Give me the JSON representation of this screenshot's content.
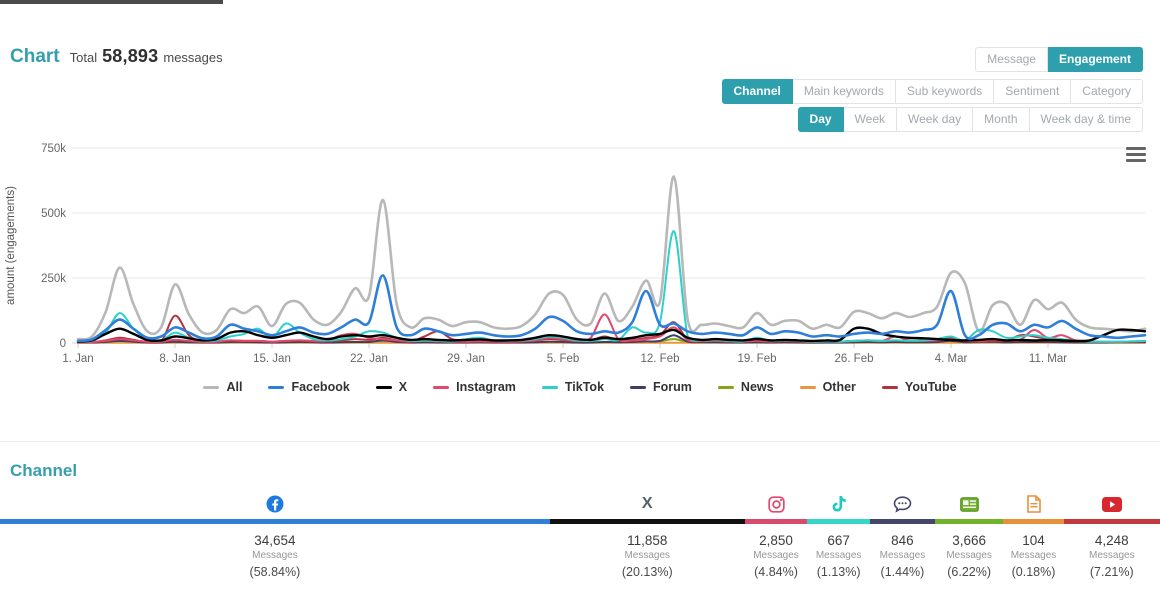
{
  "header": {
    "heading": "Chart",
    "total_label": "Total",
    "total_value": "58,893",
    "total_suffix": "messages"
  },
  "toolbars": {
    "view_toggle": [
      {
        "label": "Message",
        "active": false
      },
      {
        "label": "Engagement",
        "active": true
      }
    ],
    "dimension_tabs": [
      {
        "label": "Channel",
        "active": true
      },
      {
        "label": "Main keywords",
        "active": false
      },
      {
        "label": "Sub keywords",
        "active": false
      },
      {
        "label": "Sentiment",
        "active": false
      },
      {
        "label": "Category",
        "active": false
      }
    ],
    "granularity_tabs": [
      {
        "label": "Day",
        "active": true
      },
      {
        "label": "Week",
        "active": false
      },
      {
        "label": "Week day",
        "active": false
      },
      {
        "label": "Month",
        "active": false
      },
      {
        "label": "Week day & time",
        "active": false
      }
    ]
  },
  "colors": {
    "accent_teal": "#2e9fad",
    "grid": "#e8e8e8",
    "axis": "#cccccc",
    "tick_text": "#666666"
  },
  "chart_data": {
    "type": "line",
    "title": "",
    "ylabel": "amount (engagements)",
    "xlabel": "",
    "y_unit": "thousands",
    "ylim_thousands": [
      0,
      750
    ],
    "ytick_labels": [
      "0",
      "250k",
      "500k",
      "750k"
    ],
    "ytick_values_thousands": [
      0,
      250,
      500,
      750
    ],
    "x_start": "1. Jan",
    "x_end": "19. Mar",
    "points_per_series": 78,
    "xtick_labels": [
      "1. Jan",
      "8. Jan",
      "15. Jan",
      "22. Jan",
      "29. Jan",
      "5. Feb",
      "12. Feb",
      "19. Feb",
      "26. Feb",
      "4. Mar",
      "11. Mar"
    ],
    "xtick_day_indices": [
      0,
      7,
      14,
      21,
      28,
      35,
      42,
      49,
      56,
      63,
      70
    ],
    "legend_position": "bottom",
    "grid": true,
    "series": [
      {
        "name": "All",
        "color": "#b8b8b8",
        "width": 2.6,
        "values_thousands": [
          15,
          25,
          120,
          290,
          150,
          45,
          60,
          225,
          110,
          40,
          50,
          130,
          115,
          140,
          65,
          150,
          155,
          90,
          70,
          120,
          210,
          180,
          550,
          150,
          60,
          95,
          90,
          65,
          80,
          80,
          60,
          55,
          65,
          110,
          190,
          185,
          90,
          75,
          190,
          85,
          140,
          240,
          160,
          640,
          90,
          70,
          75,
          65,
          60,
          115,
          70,
          85,
          85,
          55,
          70,
          60,
          120,
          115,
          95,
          115,
          100,
          115,
          140,
          270,
          230,
          45,
          145,
          150,
          70,
          165,
          130,
          155,
          90,
          60,
          55,
          50,
          45,
          55
        ]
      },
      {
        "name": "Facebook",
        "color": "#2f7fd9",
        "width": 2.6,
        "values_thousands": [
          8,
          14,
          50,
          90,
          55,
          20,
          25,
          60,
          40,
          18,
          25,
          70,
          55,
          45,
          30,
          45,
          60,
          40,
          35,
          60,
          90,
          80,
          260,
          60,
          30,
          55,
          45,
          30,
          35,
          40,
          30,
          25,
          30,
          55,
          100,
          85,
          45,
          35,
          45,
          40,
          80,
          200,
          70,
          75,
          45,
          35,
          40,
          35,
          30,
          60,
          35,
          45,
          40,
          25,
          30,
          25,
          35,
          40,
          35,
          45,
          40,
          50,
          70,
          200,
          30,
          30,
          70,
          75,
          45,
          70,
          60,
          85,
          55,
          30,
          25,
          20,
          25,
          30
        ]
      },
      {
        "name": "X",
        "color": "#000000",
        "width": 2.4,
        "values_thousands": [
          5,
          10,
          35,
          55,
          35,
          12,
          10,
          25,
          18,
          10,
          15,
          40,
          45,
          30,
          20,
          30,
          40,
          25,
          15,
          25,
          30,
          25,
          30,
          20,
          12,
          15,
          12,
          10,
          12,
          14,
          10,
          10,
          12,
          20,
          30,
          25,
          15,
          12,
          20,
          15,
          20,
          30,
          35,
          50,
          20,
          12,
          15,
          12,
          10,
          15,
          10,
          12,
          10,
          8,
          10,
          12,
          55,
          55,
          35,
          25,
          20,
          18,
          15,
          12,
          10,
          12,
          15,
          10,
          12,
          10,
          12,
          10,
          8,
          10,
          30,
          50,
          50,
          45
        ]
      },
      {
        "name": "Instagram",
        "color": "#e0486e",
        "width": 2,
        "values_thousands": [
          3,
          4,
          8,
          15,
          10,
          5,
          5,
          12,
          8,
          4,
          5,
          10,
          8,
          8,
          5,
          8,
          10,
          8,
          10,
          30,
          35,
          20,
          15,
          10,
          6,
          8,
          6,
          5,
          5,
          6,
          5,
          5,
          6,
          10,
          20,
          15,
          8,
          20,
          110,
          15,
          10,
          15,
          25,
          60,
          12,
          8,
          8,
          6,
          5,
          8,
          5,
          8,
          6,
          5,
          6,
          5,
          8,
          10,
          8,
          25,
          10,
          8,
          10,
          15,
          8,
          6,
          10,
          8,
          12,
          50,
          20,
          30,
          10,
          6,
          5,
          5,
          6,
          8
        ]
      },
      {
        "name": "TikTok",
        "color": "#2ad2c9",
        "width": 2,
        "values_thousands": [
          5,
          8,
          40,
          115,
          55,
          12,
          10,
          40,
          20,
          8,
          10,
          25,
          35,
          55,
          20,
          75,
          40,
          15,
          10,
          15,
          25,
          45,
          40,
          20,
          8,
          10,
          8,
          6,
          15,
          20,
          10,
          8,
          10,
          15,
          25,
          20,
          10,
          8,
          15,
          12,
          60,
          40,
          80,
          430,
          25,
          10,
          12,
          8,
          6,
          20,
          8,
          10,
          8,
          5,
          6,
          5,
          8,
          10,
          8,
          10,
          8,
          10,
          15,
          25,
          10,
          50,
          45,
          20,
          25,
          30,
          20,
          15,
          8,
          5,
          5,
          5,
          6,
          8
        ]
      },
      {
        "name": "Forum",
        "color": "#3f3f63",
        "width": 2,
        "values_thousands": [
          2,
          2,
          4,
          8,
          5,
          2,
          2,
          5,
          3,
          2,
          2,
          4,
          4,
          3,
          2,
          3,
          4,
          3,
          2,
          3,
          4,
          4,
          10,
          4,
          2,
          3,
          2,
          2,
          2,
          3,
          2,
          2,
          2,
          3,
          5,
          4,
          2,
          2,
          4,
          3,
          4,
          6,
          8,
          30,
          5,
          3,
          3,
          2,
          2,
          3,
          2,
          3,
          2,
          2,
          2,
          2,
          3,
          4,
          3,
          4,
          3,
          3,
          4,
          8,
          3,
          4,
          5,
          3,
          4,
          4,
          4,
          3,
          2,
          2,
          2,
          3,
          3,
          3
        ]
      },
      {
        "name": "News",
        "color": "#84a719",
        "width": 2,
        "values_thousands": [
          1,
          2,
          3,
          6,
          4,
          2,
          2,
          4,
          3,
          2,
          2,
          3,
          3,
          3,
          2,
          3,
          3,
          2,
          2,
          3,
          4,
          3,
          8,
          3,
          2,
          2,
          2,
          2,
          2,
          2,
          2,
          2,
          2,
          3,
          4,
          4,
          2,
          2,
          3,
          2,
          3,
          5,
          6,
          15,
          4,
          2,
          2,
          2,
          2,
          3,
          2,
          2,
          2,
          1,
          2,
          2,
          3,
          3,
          2,
          3,
          2,
          3,
          4,
          6,
          2,
          3,
          4,
          2,
          3,
          3,
          3,
          2,
          2,
          2,
          2,
          2,
          2,
          2
        ]
      },
      {
        "name": "Other",
        "color": "#e8973d",
        "width": 2,
        "values_thousands": [
          1,
          1,
          1,
          1,
          1,
          1,
          1,
          1,
          1,
          1,
          1,
          1,
          1,
          1,
          1,
          1,
          1,
          1,
          1,
          1,
          1,
          1,
          1,
          1,
          1,
          1,
          1,
          1,
          1,
          1,
          1,
          1,
          1,
          1,
          1,
          1,
          1,
          1,
          1,
          1,
          1,
          1,
          1,
          1,
          1,
          1,
          1,
          1,
          1,
          1,
          1,
          1,
          1,
          1,
          1,
          1,
          1,
          1,
          1,
          1,
          1,
          1,
          1,
          1,
          1,
          1,
          1,
          1,
          1,
          1,
          1,
          1,
          1,
          1,
          1,
          1,
          1,
          1
        ]
      },
      {
        "name": "YouTube",
        "color": "#b6313e",
        "width": 2,
        "values_thousands": [
          2,
          3,
          10,
          20,
          12,
          4,
          5,
          105,
          30,
          6,
          5,
          10,
          8,
          8,
          5,
          8,
          10,
          6,
          5,
          10,
          15,
          12,
          20,
          10,
          5,
          25,
          45,
          15,
          8,
          8,
          6,
          5,
          6,
          10,
          15,
          12,
          8,
          10,
          25,
          10,
          12,
          20,
          30,
          80,
          12,
          6,
          8,
          6,
          5,
          10,
          6,
          8,
          6,
          4,
          6,
          5,
          8,
          10,
          8,
          10,
          8,
          8,
          12,
          20,
          8,
          10,
          12,
          8,
          30,
          25,
          15,
          12,
          6,
          5,
          4,
          4,
          5,
          6
        ]
      }
    ]
  },
  "channel_section": {
    "heading": "Channel",
    "messages_label": "Messages",
    "channels": [
      {
        "name": "Facebook",
        "icon": "facebook-icon",
        "color": "#2e7fd8",
        "messages": "34,654",
        "percent": "(58.84%)",
        "bar_pct": 47.4
      },
      {
        "name": "X",
        "icon": "x-icon",
        "color": "#111111",
        "messages": "11,858",
        "percent": "(20.13%)",
        "bar_pct": 16.8
      },
      {
        "name": "Instagram",
        "icon": "instagram-icon",
        "color": "#d94a6f",
        "messages": "2,850",
        "percent": "(4.84%)",
        "bar_pct": 5.4
      },
      {
        "name": "TikTok",
        "icon": "tiktok-icon",
        "color": "#35d6c8",
        "messages": "667",
        "percent": "(1.13%)",
        "bar_pct": 5.4
      },
      {
        "name": "Forum",
        "icon": "forum-icon",
        "color": "#44466b",
        "messages": "846",
        "percent": "(1.44%)",
        "bar_pct": 5.6
      },
      {
        "name": "News",
        "icon": "news-icon",
        "color": "#71b32d",
        "messages": "3,666",
        "percent": "(6.22%)",
        "bar_pct": 5.9
      },
      {
        "name": "Other",
        "icon": "other-icon",
        "color": "#e8903a",
        "messages": "104",
        "percent": "(0.18%)",
        "bar_pct": 5.2
      },
      {
        "name": "YouTube",
        "icon": "youtube-icon",
        "color": "#c23a40",
        "messages": "4,248",
        "percent": "(7.21%)",
        "bar_pct": 8.3
      }
    ]
  }
}
